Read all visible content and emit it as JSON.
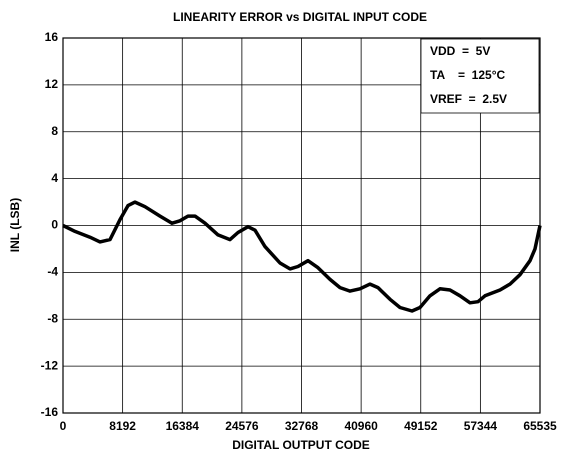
{
  "chart_data": {
    "type": "line",
    "title": "LINEARITY ERROR vs DIGITAL INPUT CODE",
    "xlabel": "DIGITAL OUTPUT CODE",
    "ylabel": "INL (LSB)",
    "annotations": [
      "VDD  =  5V",
      "TA    =  125°C",
      "VREF  =  2.5V"
    ],
    "x": [
      0,
      1649,
      3710,
      5083,
      6457,
      7831,
      8930,
      9892,
      11265,
      13326,
      14975,
      16074,
      17173,
      18135,
      19509,
      21295,
      22944,
      24043,
      25417,
      26378,
      27752,
      29813,
      31187,
      32286,
      33660,
      35034,
      36682,
      38056,
      39430,
      40804,
      42178,
      43277,
      44926,
      46300,
      47948,
      49048,
      50422,
      51796,
      53169,
      54544,
      55918,
      57017,
      57979,
      60040,
      61413,
      62786,
      64160,
      64847,
      65535
    ],
    "series": [
      {
        "name": "INL",
        "color": "#000000",
        "values": [
          0,
          -0.5,
          -1.0,
          -1.4,
          -1.2,
          0.5,
          1.7,
          2.0,
          1.6,
          0.8,
          0.2,
          0.4,
          0.8,
          0.8,
          0.2,
          -0.8,
          -1.2,
          -0.6,
          -0.1,
          -0.4,
          -1.8,
          -3.2,
          -3.7,
          -3.5,
          -3.0,
          -3.6,
          -4.6,
          -5.3,
          -5.6,
          -5.4,
          -5.0,
          -5.3,
          -6.3,
          -7.0,
          -7.3,
          -7.0,
          -6.0,
          -5.4,
          -5.5,
          -6.0,
          -6.6,
          -6.5,
          -6.0,
          -5.5,
          -5.0,
          -4.2,
          -3.0,
          -2.0,
          0
        ]
      }
    ],
    "xlim": [
      0,
      65535
    ],
    "xticks": [
      0,
      8192,
      16384,
      24576,
      32768,
      40960,
      49152,
      57344,
      65535
    ],
    "ylim": [
      -16,
      16
    ],
    "yticks": [
      -16,
      -12,
      -8,
      -4,
      0,
      4,
      8,
      12,
      16
    ],
    "grid": true
  }
}
